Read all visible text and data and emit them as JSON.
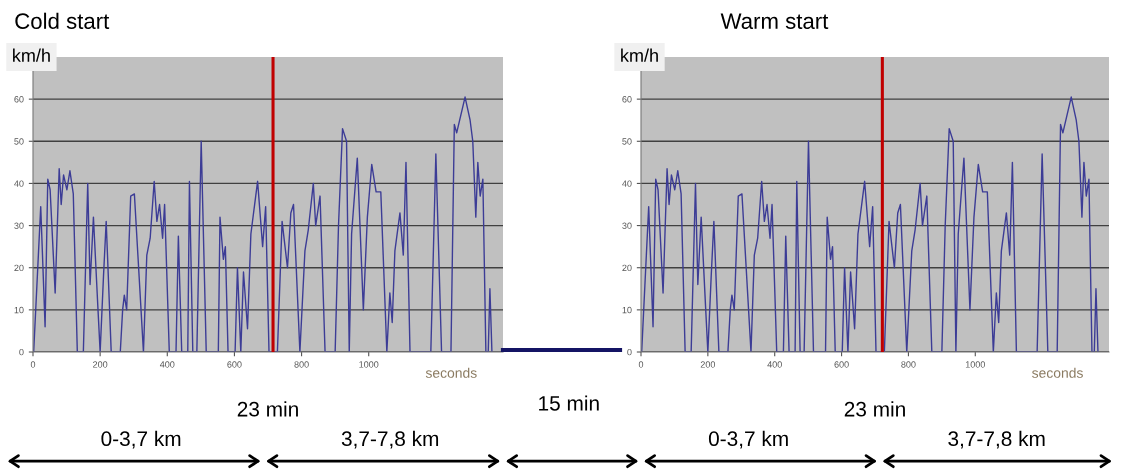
{
  "chart_data": [
    {
      "type": "line",
      "title": "Cold start",
      "ylabel": "km/h",
      "x": [
        0,
        2,
        23,
        31,
        36,
        44,
        51,
        66,
        78,
        84,
        91,
        101,
        110,
        120,
        132,
        150,
        163,
        170,
        180,
        193,
        200,
        210,
        218,
        233,
        260,
        267,
        272,
        279,
        291,
        302,
        329,
        339,
        349,
        361,
        369,
        377,
        386,
        392,
        406,
        426,
        433,
        443,
        461,
        466,
        476,
        488,
        501,
        516,
        552,
        557,
        567,
        573,
        581,
        602,
        609,
        619,
        627,
        639,
        649,
        669,
        684,
        693,
        703,
        728,
        742,
        758,
        768,
        776,
        795,
        810,
        820,
        835,
        842,
        855,
        870,
        900,
        910,
        922,
        934,
        942,
        949,
        966,
        984,
        996,
        1009,
        1022,
        1036,
        1054,
        1063,
        1070,
        1078,
        1093,
        1103,
        1111,
        1123,
        1185,
        1200,
        1217,
        1245,
        1255,
        1262,
        1287,
        1302,
        1310,
        1319,
        1325,
        1332,
        1340,
        1349,
        1356,
        1361,
        1367
      ],
      "series": [
        {
          "color": "#3c3c96",
          "values": [
            0,
            0,
            34.5,
            17,
            6,
            41,
            38.5,
            14,
            43.5,
            35,
            42,
            38.5,
            43,
            37.5,
            0,
            0,
            40,
            16,
            32,
            11,
            0,
            18,
            31,
            0,
            0,
            10,
            13.5,
            10,
            37,
            37.5,
            0,
            23,
            27,
            40.5,
            31,
            35,
            27,
            35,
            0,
            0,
            27.5,
            0,
            0,
            40.5,
            0,
            0,
            50,
            0,
            0,
            32,
            22,
            25,
            0,
            0,
            20,
            0,
            19,
            5.5,
            28,
            40.5,
            25,
            34.5,
            0,
            0,
            31,
            20,
            33,
            35,
            0,
            24,
            29,
            40,
            30,
            37,
            0,
            0,
            30,
            53,
            50,
            0,
            28,
            46,
            10,
            32,
            44.5,
            38,
            38,
            0,
            14,
            7,
            24,
            33,
            23,
            45,
            0,
            0,
            47,
            0,
            0,
            54,
            52,
            60.5,
            55,
            50,
            32,
            45,
            37,
            41,
            0,
            0,
            15,
            0
          ]
        }
      ],
      "xlim": [
        0,
        1400
      ],
      "xticks": [
        0,
        200,
        400,
        600,
        800,
        1000
      ],
      "ylim": [
        0,
        70
      ],
      "yticks": [
        0,
        10,
        20,
        30,
        40,
        50,
        60
      ],
      "grid": "y",
      "ref_lines": [
        {
          "axis": "x",
          "value": 715,
          "color": "#c00000"
        }
      ],
      "annotations": [
        "seconds",
        "23 min",
        "0-3,7 km",
        "3,7-7,8 km",
        "15 min"
      ]
    },
    {
      "type": "line",
      "title": "Warm start",
      "ylabel": "km/h",
      "x": [
        0,
        2,
        23,
        31,
        36,
        44,
        51,
        66,
        78,
        84,
        91,
        101,
        110,
        120,
        132,
        150,
        163,
        170,
        180,
        193,
        200,
        210,
        218,
        233,
        260,
        267,
        272,
        279,
        291,
        302,
        329,
        339,
        349,
        361,
        369,
        377,
        386,
        392,
        406,
        426,
        433,
        443,
        461,
        466,
        476,
        488,
        501,
        516,
        552,
        557,
        567,
        573,
        581,
        602,
        609,
        619,
        627,
        639,
        649,
        669,
        684,
        693,
        703,
        728,
        742,
        758,
        768,
        776,
        795,
        810,
        820,
        835,
        842,
        855,
        870,
        900,
        910,
        922,
        934,
        942,
        949,
        966,
        984,
        996,
        1009,
        1022,
        1036,
        1054,
        1063,
        1070,
        1078,
        1093,
        1103,
        1111,
        1123,
        1185,
        1200,
        1217,
        1245,
        1255,
        1262,
        1287,
        1302,
        1310,
        1319,
        1325,
        1332,
        1340,
        1349,
        1356,
        1361,
        1367
      ],
      "series": [
        {
          "color": "#3c3c96",
          "values": [
            0,
            0,
            34.5,
            17,
            6,
            41,
            38.5,
            14,
            43.5,
            35,
            42,
            38.5,
            43,
            37.5,
            0,
            0,
            40,
            16,
            32,
            11,
            0,
            18,
            31,
            0,
            0,
            10,
            13.5,
            10,
            37,
            37.5,
            0,
            23,
            27,
            40.5,
            31,
            35,
            27,
            35,
            0,
            0,
            27.5,
            0,
            0,
            40.5,
            0,
            0,
            50,
            0,
            0,
            32,
            22,
            25,
            0,
            0,
            20,
            0,
            19,
            5.5,
            28,
            40.5,
            25,
            34.5,
            0,
            0,
            31,
            20,
            33,
            35,
            0,
            24,
            29,
            40,
            30,
            37,
            0,
            0,
            30,
            53,
            50,
            0,
            28,
            46,
            10,
            32,
            44.5,
            38,
            38,
            0,
            14,
            7,
            24,
            33,
            23,
            45,
            0,
            0,
            47,
            0,
            0,
            54,
            52,
            60.5,
            55,
            50,
            32,
            45,
            37,
            41,
            0,
            0,
            15,
            0
          ]
        }
      ],
      "xlim": [
        0,
        1400
      ],
      "xticks": [
        0,
        200,
        400,
        600,
        800,
        1000
      ],
      "ylim": [
        0,
        70
      ],
      "yticks": [
        0,
        10,
        20,
        30,
        40,
        50,
        60
      ],
      "grid": "y",
      "ref_lines": [
        {
          "axis": "x",
          "value": 722,
          "color": "#c00000"
        }
      ],
      "annotations": [
        "seconds",
        "23 min",
        "0-3,7 km",
        "3,7-7,8 km"
      ]
    }
  ]
}
